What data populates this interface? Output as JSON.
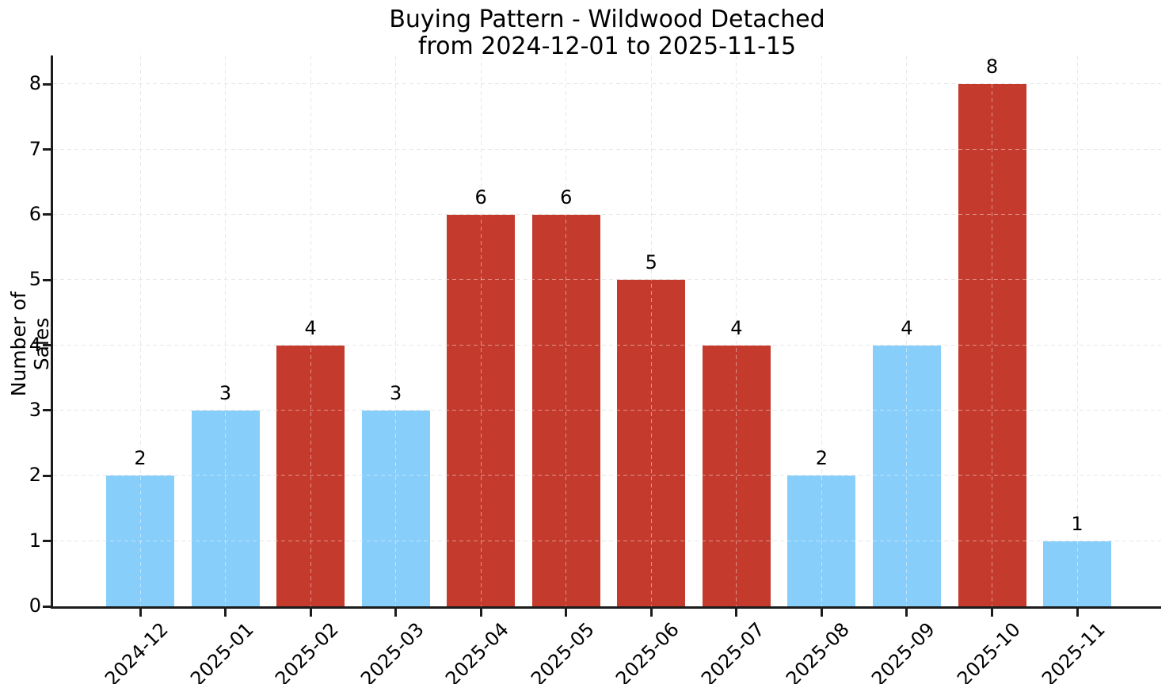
{
  "chart_data": {
    "type": "bar",
    "title": "Buying Pattern - Wildwood Detached",
    "subtitle": "from 2024-12-01 to 2025-11-15",
    "xlabel": "",
    "ylabel": "Number of Sales",
    "categories": [
      "2024-12",
      "2025-01",
      "2025-02",
      "2025-03",
      "2025-04",
      "2025-05",
      "2025-06",
      "2025-07",
      "2025-08",
      "2025-09",
      "2025-10",
      "2025-11"
    ],
    "values": [
      2,
      3,
      4,
      3,
      6,
      6,
      5,
      4,
      2,
      4,
      8,
      1
    ],
    "bar_colors": [
      "#87cefa",
      "#87cefa",
      "#c43a2c",
      "#87cefa",
      "#c43a2c",
      "#c43a2c",
      "#c43a2c",
      "#c43a2c",
      "#87cefa",
      "#87cefa",
      "#c43a2c",
      "#87cefa"
    ],
    "value_labels": [
      2,
      3,
      4,
      3,
      6,
      6,
      5,
      4,
      2,
      4,
      8,
      1
    ],
    "yticks": [
      0,
      1,
      2,
      3,
      4,
      5,
      6,
      7,
      8
    ],
    "ylim": [
      0,
      8.43
    ],
    "grid": true,
    "grid_style": "dashed",
    "legend": "none"
  },
  "colors": {
    "bar_blue": "#87cefa",
    "bar_red": "#c43a2c",
    "axis": "#1c1c1c",
    "grid": "#d3d3d3",
    "background": "#ffffff"
  }
}
